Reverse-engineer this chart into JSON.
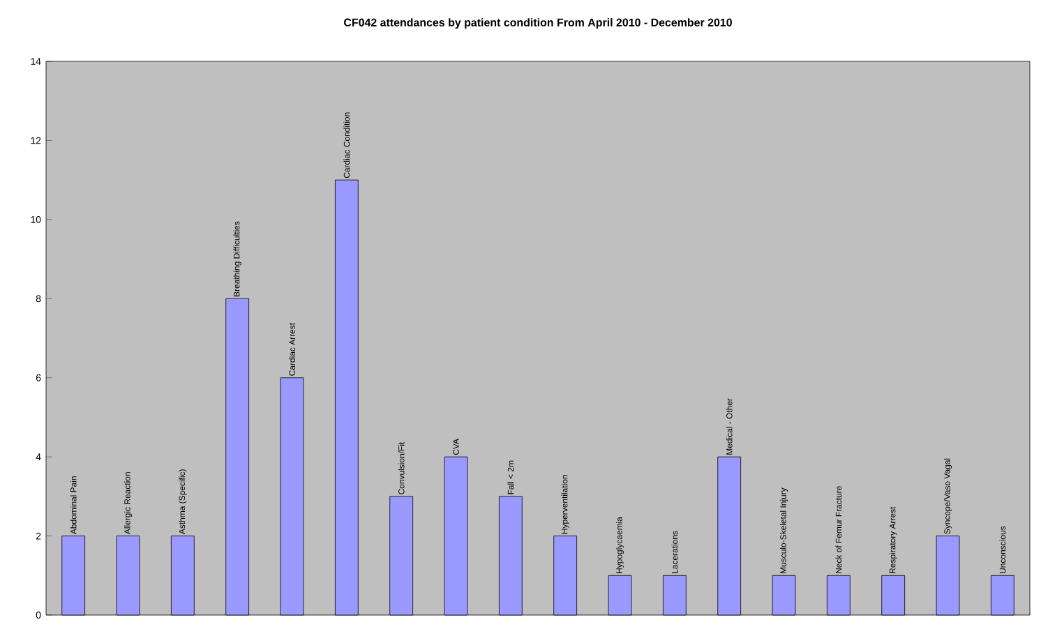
{
  "chart_data": {
    "type": "bar",
    "title": "CF042 attendances by patient condition From April 2010 - December 2010",
    "categories": [
      "Abdominal Pain",
      "Allergic Reaction",
      "Asthma (Specific)",
      "Breathing Difficulties",
      "Cardiac Arrest",
      "Cardiac Condition",
      "Convulsion/Fit",
      "CVA",
      "Fall < 2m",
      "Hyperventilation",
      "Hypoglycaemia",
      "Lacerations",
      "Medical - Other",
      "Musculo-Skeletal Injury",
      "Neck of Femur Fracture",
      "Respiratory Arrest",
      "Syncope/Vaso Vagal",
      "Unconscious"
    ],
    "values": [
      2,
      2,
      2,
      8,
      6,
      11,
      3,
      4,
      3,
      2,
      1,
      1,
      4,
      1,
      1,
      1,
      2,
      1
    ],
    "color": "#9999ff",
    "ylim": [
      0,
      14
    ],
    "yticks": [
      0,
      2,
      4,
      6,
      8,
      10,
      12,
      14
    ]
  }
}
